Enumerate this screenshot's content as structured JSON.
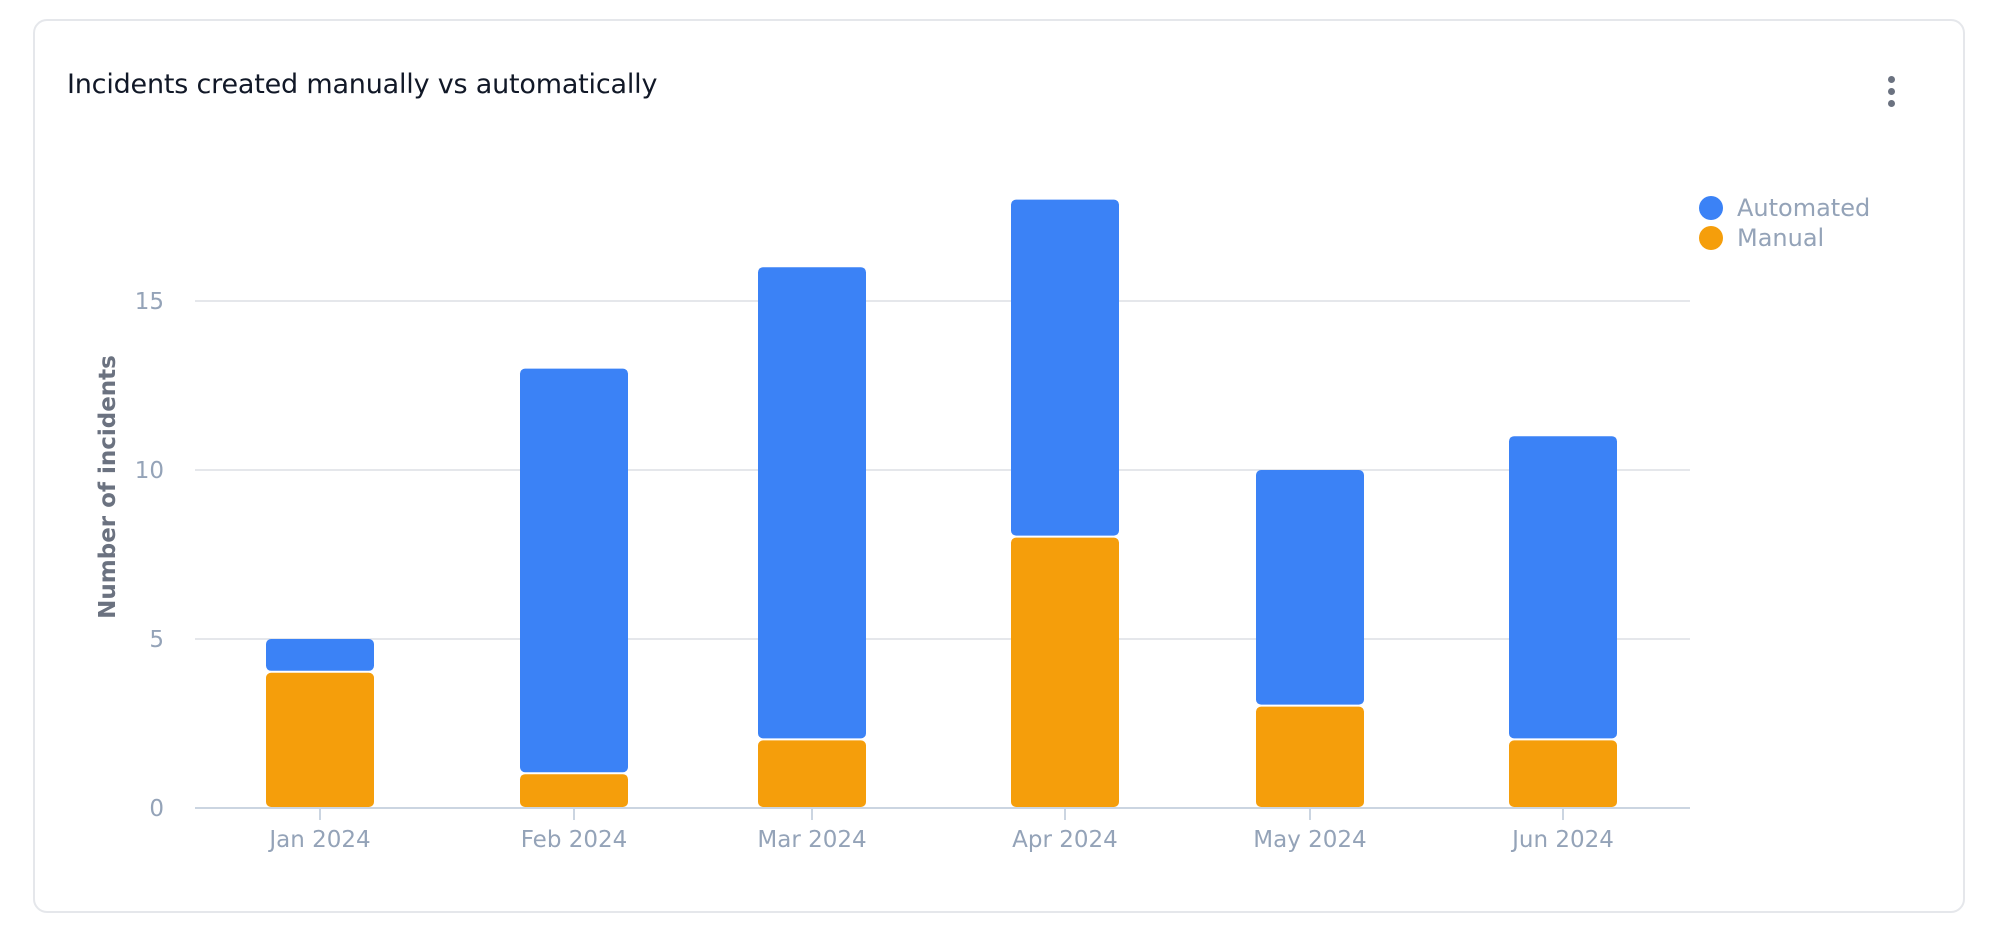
{
  "card": {
    "title": "Incidents created manually vs automatically",
    "menu_icon": "more-vertical-icon"
  },
  "legend": [
    {
      "label": "Automated",
      "color": "#3b82f6"
    },
    {
      "label": "Manual",
      "color": "#f59e0b"
    }
  ],
  "chart_data": {
    "type": "bar",
    "stacked": true,
    "title": "Incidents created manually vs automatically",
    "xlabel": "",
    "ylabel": "Number of incidents",
    "categories": [
      "Jan 2024",
      "Feb 2024",
      "Mar 2024",
      "Apr 2024",
      "May 2024",
      "Jun 2024"
    ],
    "series": [
      {
        "name": "Manual",
        "color": "#f59e0b",
        "values": [
          4,
          1,
          2,
          8,
          3,
          2
        ]
      },
      {
        "name": "Automated",
        "color": "#3b82f6",
        "values": [
          1,
          12,
          14,
          10,
          7,
          9
        ]
      }
    ],
    "yticks": [
      0,
      5,
      10,
      15
    ],
    "ylim": [
      0,
      20
    ],
    "grid": true,
    "legend_position": "top-right"
  }
}
